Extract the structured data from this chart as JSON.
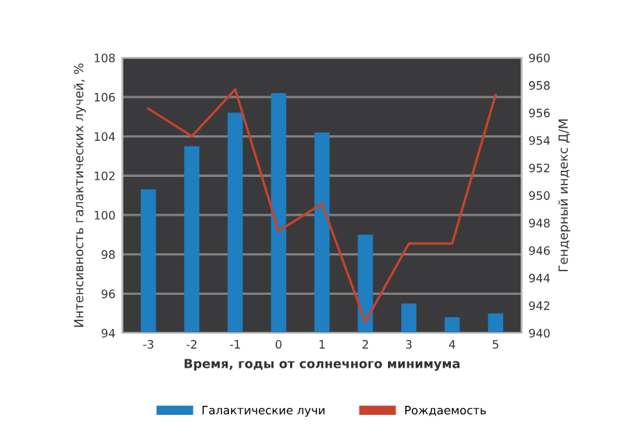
{
  "chart_data": {
    "type": "bar",
    "xlabel": "Время, годы от солнечного минимума",
    "ylabel": "Интенсивность галактических лучей, %",
    "y2label": "Гендерный индекс Д/М",
    "categories": [
      "-3",
      "-2",
      "-1",
      "0",
      "1",
      "2",
      "3",
      "4",
      "5"
    ],
    "series": [
      {
        "name": "Галактические лучи",
        "color": "#1f7fc0",
        "values": [
          101.3,
          103.5,
          105.2,
          106.2,
          104.2,
          99.0,
          95.5,
          94.8,
          95.0
        ]
      },
      {
        "name": "Рождаемость",
        "type": "line",
        "axis": "y2",
        "color": "#c8432f",
        "values": [
          956.3,
          954.3,
          957.7,
          947.4,
          949.4,
          940.8,
          946.5,
          946.5,
          957.3
        ]
      }
    ],
    "ylim": [
      94,
      108
    ],
    "yticks": [
      94,
      96,
      98,
      100,
      102,
      104,
      106,
      108
    ],
    "y2lim": [
      940,
      960
    ],
    "y2ticks": [
      940,
      942,
      944,
      946,
      948,
      950,
      952,
      954,
      956,
      958,
      960
    ],
    "grid": "y",
    "legend": "bottom"
  }
}
